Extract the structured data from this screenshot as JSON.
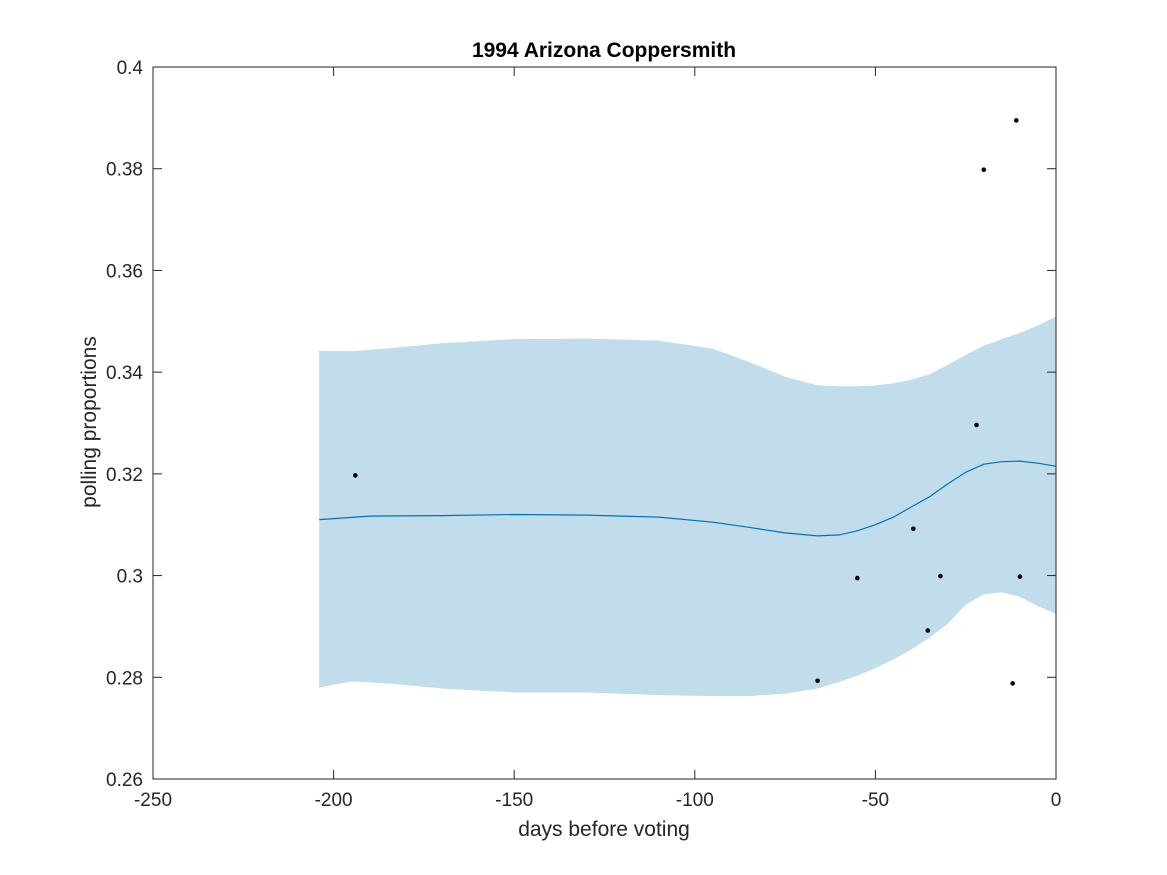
{
  "chart_data": {
    "type": "line",
    "title": "1994 Arizona Coppersmith",
    "xlabel": "days before voting",
    "ylabel": "polling proportions",
    "xlim": [
      -250,
      0
    ],
    "ylim": [
      0.26,
      0.4
    ],
    "xticks": [
      -250,
      -200,
      -150,
      -100,
      -50,
      0
    ],
    "yticks": [
      0.26,
      0.28,
      0.3,
      0.32,
      0.34,
      0.36,
      0.38,
      0.4
    ],
    "xtick_labels": [
      "-250",
      "-200",
      "-150",
      "-100",
      "-50",
      "0"
    ],
    "ytick_labels": [
      "0.26",
      "0.28",
      "0.3",
      "0.32",
      "0.34",
      "0.36",
      "0.38",
      "0.4"
    ],
    "grid": false,
    "colors": {
      "band": "#c1dceb",
      "line": "#0072bd",
      "points": "#000000",
      "axes": "#262626"
    },
    "trend": {
      "x": [
        -204,
        -190,
        -170,
        -150,
        -130,
        -110,
        -95,
        -85,
        -75,
        -66,
        -60,
        -55,
        -50,
        -45,
        -40,
        -35,
        -30,
        -25,
        -20,
        -15,
        -10,
        -5,
        0
      ],
      "y": [
        0.311,
        0.3117,
        0.3118,
        0.312,
        0.3119,
        0.3115,
        0.3105,
        0.3095,
        0.3084,
        0.3078,
        0.308,
        0.3088,
        0.31,
        0.3115,
        0.3135,
        0.3155,
        0.318,
        0.3203,
        0.3219,
        0.3224,
        0.3225,
        0.3221,
        0.3215
      ]
    },
    "band_upper": {
      "x": [
        -204,
        -195,
        -185,
        -170,
        -150,
        -130,
        -110,
        -95,
        -85,
        -75,
        -66,
        -60,
        -55,
        -50,
        -45,
        -40,
        -35,
        -30,
        -25,
        -20,
        -15,
        -10,
        -5,
        0
      ],
      "y": [
        0.3442,
        0.3441,
        0.3447,
        0.3457,
        0.3465,
        0.3466,
        0.3462,
        0.3446,
        0.342,
        0.3391,
        0.3374,
        0.3372,
        0.3372,
        0.3374,
        0.3378,
        0.3385,
        0.3396,
        0.3414,
        0.3434,
        0.3452,
        0.3465,
        0.3477,
        0.3492,
        0.3509
      ]
    },
    "band_lower": {
      "x": [
        -204,
        -195,
        -185,
        -170,
        -150,
        -130,
        -110,
        -95,
        -85,
        -75,
        -66,
        -60,
        -55,
        -50,
        -45,
        -40,
        -35,
        -30,
        -25,
        -20,
        -15,
        -10,
        -5,
        0
      ],
      "y": [
        0.278,
        0.2792,
        0.2788,
        0.2778,
        0.277,
        0.277,
        0.2765,
        0.2763,
        0.2763,
        0.2768,
        0.2778,
        0.2791,
        0.2803,
        0.2818,
        0.2835,
        0.2855,
        0.2878,
        0.2905,
        0.2943,
        0.2963,
        0.2967,
        0.2958,
        0.294,
        0.2925
      ]
    },
    "points": [
      {
        "x": -194,
        "y": 0.3197
      },
      {
        "x": -66,
        "y": 0.2793
      },
      {
        "x": -55,
        "y": 0.2995
      },
      {
        "x": -39.5,
        "y": 0.3092
      },
      {
        "x": -35.5,
        "y": 0.2892
      },
      {
        "x": -32,
        "y": 0.2999
      },
      {
        "x": -22,
        "y": 0.3296
      },
      {
        "x": -20,
        "y": 0.3798
      },
      {
        "x": -12,
        "y": 0.2788
      },
      {
        "x": -11,
        "y": 0.3895
      },
      {
        "x": -10,
        "y": 0.2998
      }
    ]
  }
}
